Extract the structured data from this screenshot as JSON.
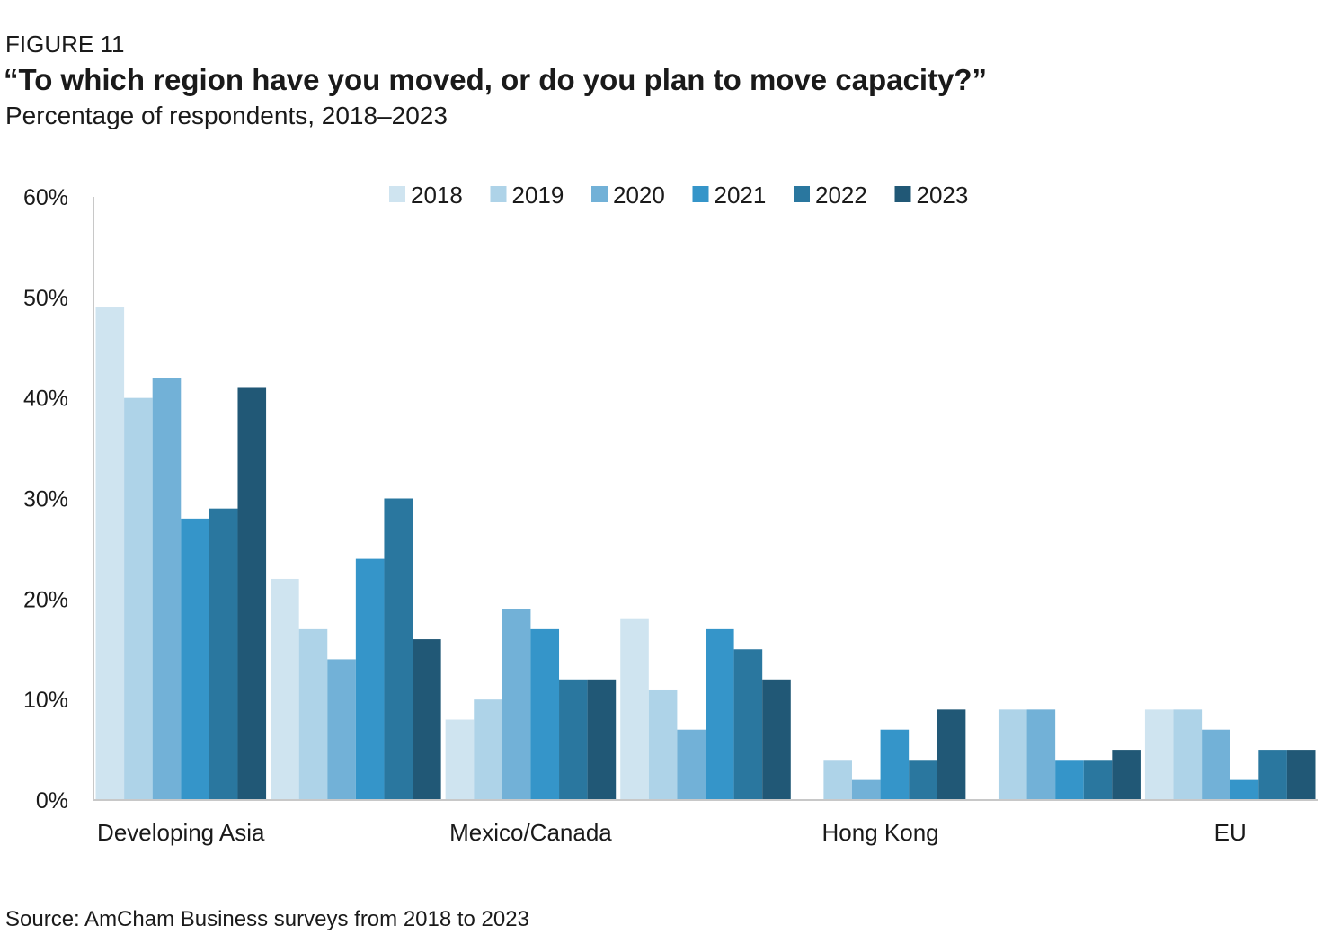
{
  "figure_label": "FIGURE 11",
  "title": "“To which region have you moved, or do you plan to move capacity?”",
  "subtitle": "Percentage of respondents, 2018–2023",
  "source": "Source: AmCham Business surveys from 2018 to 2023",
  "chart_data": {
    "type": "bar",
    "categories": [
      "Developing Asia",
      "",
      "Mexico/Canada",
      "",
      "Hong Kong",
      "",
      "EU"
    ],
    "series": [
      {
        "name": "2018",
        "color": "#cfe4f0",
        "values": [
          49,
          22,
          8,
          18,
          0,
          0,
          9
        ]
      },
      {
        "name": "2019",
        "color": "#aed3e8",
        "values": [
          40,
          17,
          10,
          11,
          4,
          9,
          9
        ]
      },
      {
        "name": "2020",
        "color": "#72b1d7",
        "values": [
          42,
          14,
          19,
          7,
          2,
          9,
          7
        ]
      },
      {
        "name": "2021",
        "color": "#3595c9",
        "values": [
          28,
          24,
          17,
          17,
          7,
          4,
          2
        ]
      },
      {
        "name": "2022",
        "color": "#2a779f",
        "values": [
          29,
          30,
          12,
          15,
          4,
          4,
          5
        ]
      },
      {
        "name": "2023",
        "color": "#215876",
        "values": [
          41,
          16,
          12,
          12,
          9,
          5,
          5
        ]
      }
    ],
    "yticks": [
      "0%",
      "10%",
      "20%",
      "30%",
      "40%",
      "50%",
      "60%"
    ],
    "ylim": [
      0,
      60
    ],
    "ylabel": "",
    "xlabel": "",
    "legend": "top-center",
    "grid": false
  }
}
